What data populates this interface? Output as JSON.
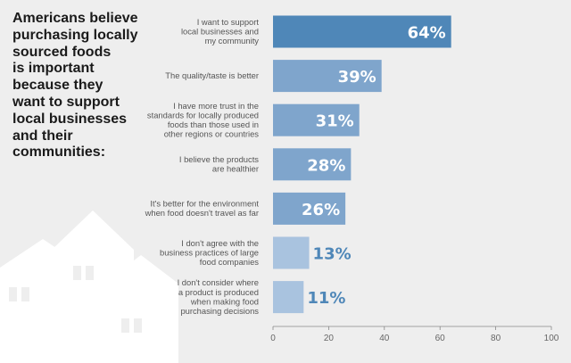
{
  "title": "Americans believe\npurchasing locally\nsourced foods\nis important\nbecause they\nwant to support\nlocal businesses\nand their\ncommunities:",
  "colors": {
    "background": "#eeeeee",
    "bar_highlight": "#4f87b8",
    "bar_mid": "#7fa5cc",
    "bar_light": "#a9c3df",
    "value_on_bar": "#ffffff",
    "value_outside": "#4f87b8",
    "label_text": "#555555",
    "houses": "#ffffff"
  },
  "chart_data": {
    "type": "bar",
    "orientation": "horizontal",
    "categories": [
      [
        "I want to support",
        "local businesses and",
        "my community"
      ],
      [
        "The quality/taste is better"
      ],
      [
        "I have more trust in the",
        "standards for locally produced",
        "foods than those used in",
        "other regions or countries"
      ],
      [
        "I believe the products",
        "are healthier"
      ],
      [
        "It's better for the environment",
        "when food doesn't travel as far"
      ],
      [
        "I don't agree with the",
        "business practices of large",
        "food companies"
      ],
      [
        "I don't consider where",
        "a product is produced",
        "when making food",
        "purchasing decisions"
      ]
    ],
    "values": [
      64,
      39,
      31,
      28,
      26,
      13,
      11
    ],
    "value_labels": [
      "64%",
      "39%",
      "31%",
      "28%",
      "26%",
      "13%",
      "11%"
    ],
    "xlim": [
      0,
      100
    ],
    "xticks": [
      0,
      20,
      40,
      60,
      80,
      100
    ],
    "xtick_labels": [
      "0",
      "20",
      "40",
      "60",
      "80",
      "100"
    ],
    "grid": false
  }
}
